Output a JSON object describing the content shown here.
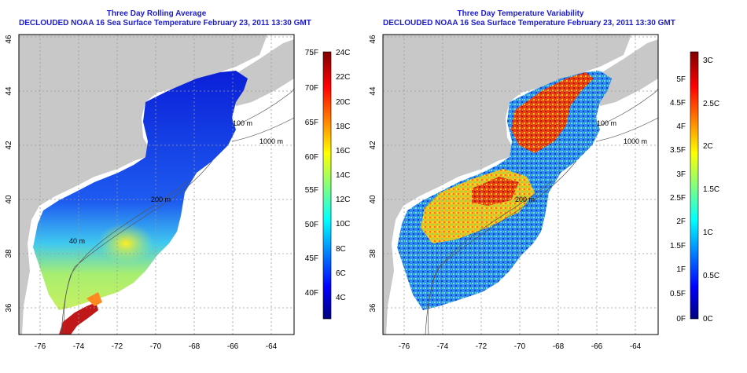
{
  "left_panel": {
    "title_line1": "Three Day Rolling Average",
    "title_line2": "DECLOUDED NOAA 16 Sea Surface Temperature February 23, 2011 13:30 GMT",
    "x_ticks": [
      "-76",
      "-74",
      "-72",
      "-70",
      "-68",
      "-66",
      "-64"
    ],
    "y_ticks": [
      "36",
      "38",
      "40",
      "42",
      "44",
      "46"
    ],
    "contour_labels": [
      "100 m",
      "1000 m",
      "200 m",
      "40 m"
    ],
    "colorbar": {
      "fahrenheit_labels": [
        "75F",
        "70F",
        "65F",
        "60F",
        "55F",
        "50F",
        "45F",
        "40F"
      ],
      "celsius_labels": [
        "24C",
        "22C",
        "20C",
        "18C",
        "16C",
        "14C",
        "12C",
        "10C",
        "8C",
        "6C",
        "4C"
      ]
    }
  },
  "right_panel": {
    "title_line1": "Three Day Temperature Variability",
    "title_line2": "DECLOUDED NOAA 16 Sea Surface Temperature February 23, 2011 13:30 GMT",
    "x_ticks": [
      "-76",
      "-74",
      "-72",
      "-70",
      "-68",
      "-66",
      "-64"
    ],
    "y_ticks": [
      "36",
      "38",
      "40",
      "42",
      "44",
      "46"
    ],
    "contour_labels": [
      "100 m",
      "1000 m",
      "200 m"
    ],
    "colorbar": {
      "fahrenheit_labels": [
        "5F",
        "4.5F",
        "4F",
        "3.5F",
        "3F",
        "2.5F",
        "2F",
        "1.5F",
        "1F",
        "0.5F",
        "0F"
      ],
      "celsius_labels": [
        "3C",
        "2.5C",
        "2C",
        "1.5C",
        "1C",
        "0.5C",
        "0C"
      ]
    }
  },
  "colors": {
    "title": "#1c1ccc",
    "land": "#c8c8c8",
    "grid": "#9a9a9a"
  }
}
